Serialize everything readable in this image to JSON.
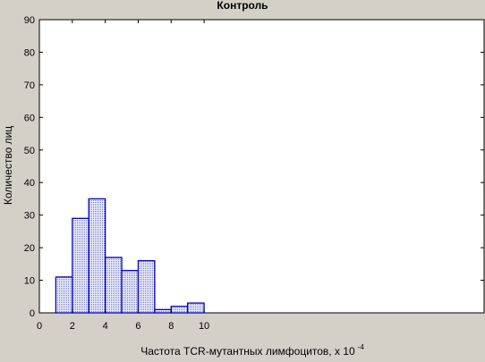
{
  "chart_data": {
    "type": "bar",
    "title": "Контроль",
    "xlabel": "Частота TCR-мутантных лимфоцитов, х 10",
    "xlabel_exponent": "-4",
    "ylabel": "Количество лиц",
    "xlim": [
      0,
      27
    ],
    "ylim": [
      0,
      90
    ],
    "x_ticks": [
      0,
      2,
      4,
      6,
      8,
      10
    ],
    "y_ticks": [
      0,
      10,
      20,
      30,
      40,
      50,
      60,
      70,
      80,
      90
    ],
    "bin_width": 1,
    "bins": [
      {
        "x": 1,
        "value": 11
      },
      {
        "x": 2,
        "value": 29
      },
      {
        "x": 3,
        "value": 35
      },
      {
        "x": 4,
        "value": 17
      },
      {
        "x": 5,
        "value": 13
      },
      {
        "x": 6,
        "value": 16
      },
      {
        "x": 7,
        "value": 1
      },
      {
        "x": 8,
        "value": 2
      },
      {
        "x": 9,
        "value": 3
      }
    ],
    "grid": false,
    "bar_fill": "#c8ccec",
    "bar_stroke": "#0000cc",
    "plot_background": "#ffffff",
    "figure_background": "#d4d0c8"
  }
}
